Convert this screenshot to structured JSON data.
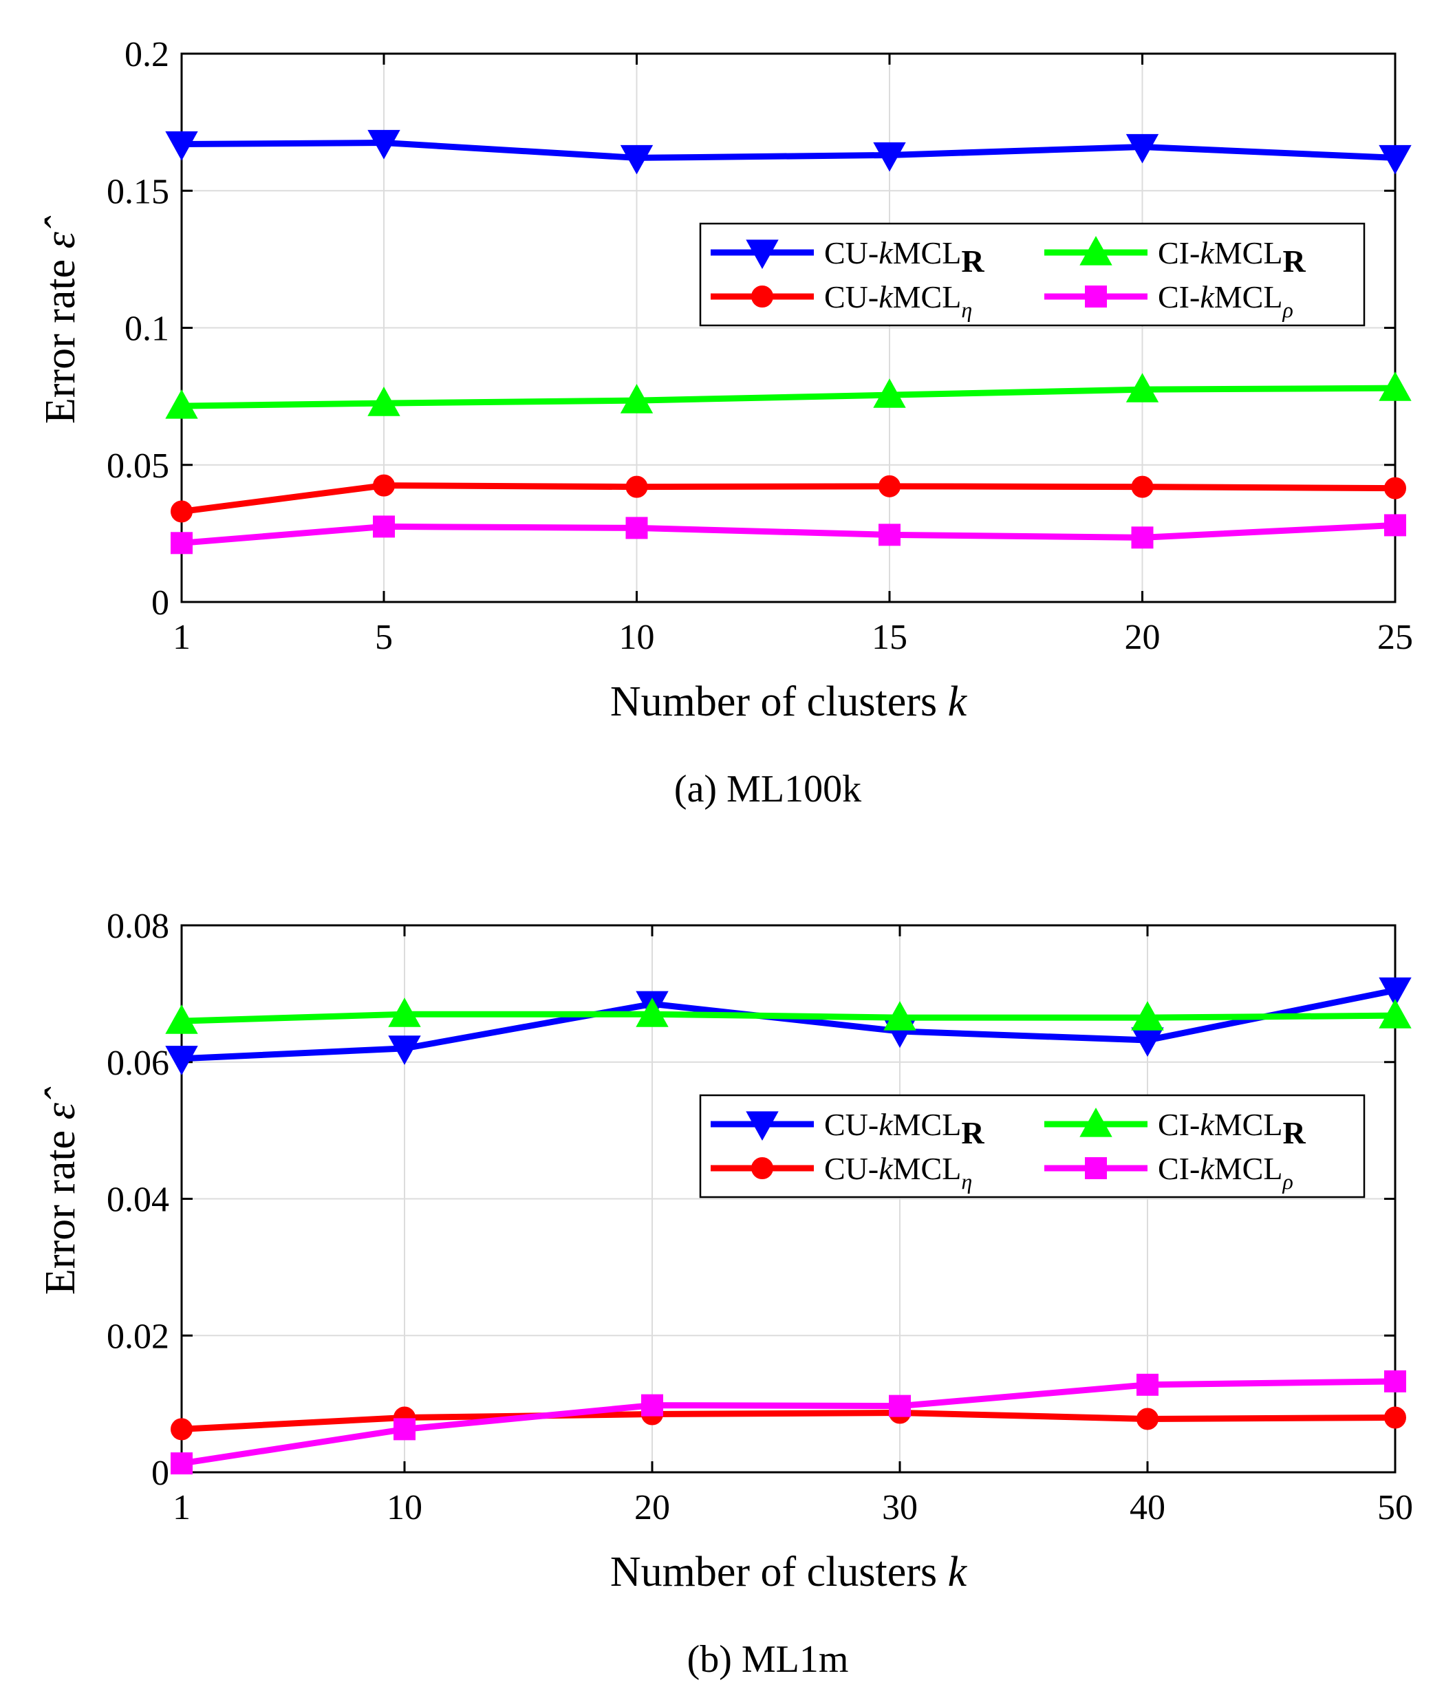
{
  "chart_data": [
    {
      "type": "line",
      "caption": "(a)  ML100k",
      "xlabel": "Number of clusters",
      "xlabel_var": "k",
      "ylabel": "Error rate",
      "ylabel_var": "ε̂",
      "grid": true,
      "legend": "inside upper-right, 2 columns",
      "xticks": [
        1,
        5,
        10,
        15,
        20,
        25
      ],
      "xtick_labels": [
        "1",
        "5",
        "10",
        "15",
        "20",
        "25"
      ],
      "yticks": [
        0,
        0.05,
        0.1,
        0.15,
        0.2
      ],
      "ytick_labels": [
        "0",
        "0.05",
        "0.1",
        "0.15",
        "0.2"
      ],
      "xlim": [
        1,
        25
      ],
      "ylim": [
        0,
        0.2
      ],
      "x": [
        1,
        5,
        10,
        15,
        20,
        25
      ],
      "series": [
        {
          "name": "CU-kMCL_R",
          "label_pre": "CU-",
          "label_var": "k",
          "label_main": "MCL",
          "label_sub": "R",
          "sub_bold": true,
          "color": "#0000ff",
          "marker": "triangle-down",
          "values": [
            0.167,
            0.1675,
            0.162,
            0.163,
            0.166,
            0.162
          ]
        },
        {
          "name": "CI-kMCL_R",
          "label_pre": "CI-",
          "label_var": "k",
          "label_main": "MCL",
          "label_sub": "R",
          "sub_bold": true,
          "color": "#00ff00",
          "marker": "triangle-up",
          "values": [
            0.0715,
            0.0725,
            0.0735,
            0.0755,
            0.0775,
            0.078
          ]
        },
        {
          "name": "CU-kMCL_η",
          "label_pre": "CU-",
          "label_var": "k",
          "label_main": "MCL",
          "label_sub": "η",
          "sub_bold": false,
          "color": "#ff0000",
          "marker": "circle",
          "values": [
            0.033,
            0.0425,
            0.042,
            0.0422,
            0.042,
            0.0415
          ]
        },
        {
          "name": "CI-kMCL_ρ",
          "label_pre": "CI-",
          "label_var": "k",
          "label_main": "MCL",
          "label_sub": "ρ",
          "sub_bold": false,
          "color": "#ff00ff",
          "marker": "square",
          "values": [
            0.0215,
            0.0275,
            0.027,
            0.0245,
            0.0235,
            0.028
          ]
        }
      ]
    },
    {
      "type": "line",
      "caption": "(b)  ML1m",
      "xlabel": "Number of clusters",
      "xlabel_var": "k",
      "ylabel": "Error rate",
      "ylabel_var": "ε̂",
      "grid": true,
      "legend": "inside center-right, 2 columns",
      "xticks": [
        1,
        10,
        20,
        30,
        40,
        50
      ],
      "xtick_labels": [
        "1",
        "10",
        "20",
        "30",
        "40",
        "50"
      ],
      "yticks": [
        0,
        0.02,
        0.04,
        0.06,
        0.08
      ],
      "ytick_labels": [
        "0",
        "0.02",
        "0.04",
        "0.06",
        "0.08"
      ],
      "xlim": [
        1,
        50
      ],
      "ylim": [
        0,
        0.08
      ],
      "x": [
        1,
        10,
        20,
        30,
        40,
        50
      ],
      "series": [
        {
          "name": "CU-kMCL_R",
          "label_pre": "CU-",
          "label_var": "k",
          "label_main": "MCL",
          "label_sub": "R",
          "sub_bold": true,
          "color": "#0000ff",
          "marker": "triangle-down",
          "values": [
            0.0605,
            0.062,
            0.0685,
            0.0645,
            0.0632,
            0.0705
          ]
        },
        {
          "name": "CI-kMCL_R",
          "label_pre": "CI-",
          "label_var": "k",
          "label_main": "MCL",
          "label_sub": "R",
          "sub_bold": true,
          "color": "#00ff00",
          "marker": "triangle-up",
          "values": [
            0.066,
            0.067,
            0.067,
            0.0665,
            0.0665,
            0.0668
          ]
        },
        {
          "name": "CU-kMCL_η",
          "label_pre": "CU-",
          "label_var": "k",
          "label_main": "MCL",
          "label_sub": "η",
          "sub_bold": false,
          "color": "#ff0000",
          "marker": "circle",
          "values": [
            0.0063,
            0.008,
            0.0085,
            0.0087,
            0.0078,
            0.008
          ]
        },
        {
          "name": "CI-kMCL_ρ",
          "label_pre": "CI-",
          "label_var": "k",
          "label_main": "MCL",
          "label_sub": "ρ",
          "sub_bold": false,
          "color": "#ff00ff",
          "marker": "square",
          "values": [
            0.0013,
            0.0063,
            0.0098,
            0.0097,
            0.0128,
            0.0133
          ]
        }
      ]
    }
  ]
}
